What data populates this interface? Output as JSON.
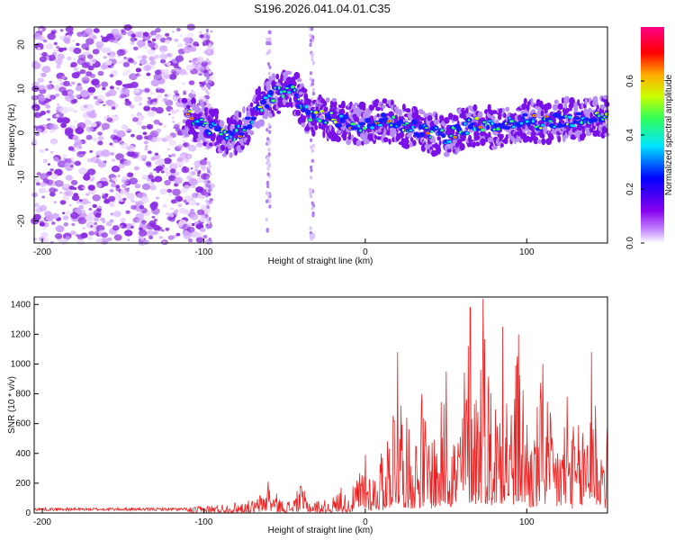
{
  "title": "S196.2026.041.04.01.C35",
  "chart_data": [
    {
      "type": "heatmap",
      "name": "spectrogram",
      "xlabel": "Height of straight line (km)",
      "ylabel": "Frequency (Hz)",
      "xlim": [
        -205,
        150
      ],
      "ylim": [
        -25,
        24
      ],
      "xticks": [
        -200,
        -100,
        0,
        100
      ],
      "yticks": [
        -20,
        -10,
        0,
        10,
        20
      ],
      "colorbar": {
        "label": "Normalized spectral amplitude",
        "range": [
          0.0,
          0.8
        ],
        "ticks": [
          0.0,
          0.2,
          0.4,
          0.6
        ],
        "colormap": [
          "#ffffff",
          "#cc99ff",
          "#8800ee",
          "#0000ff",
          "#00e5ff",
          "#33ff55",
          "#ccff00",
          "#ffaa00",
          "#ff0000",
          "#ff0088"
        ]
      },
      "ridge": {
        "description_points": [
          [
            -110,
            4
          ],
          [
            -95,
            1
          ],
          [
            -85,
            -1
          ],
          [
            -75,
            1
          ],
          [
            -65,
            6
          ],
          [
            -55,
            9
          ],
          [
            -45,
            10
          ],
          [
            -35,
            4
          ],
          [
            -20,
            3
          ],
          [
            -5,
            2
          ],
          [
            0,
            2
          ],
          [
            10,
            3
          ],
          [
            20,
            2
          ],
          [
            30,
            1
          ],
          [
            40,
            0
          ],
          [
            50,
            -1
          ],
          [
            60,
            1
          ],
          [
            70,
            2
          ],
          [
            80,
            1
          ],
          [
            90,
            2
          ],
          [
            100,
            3
          ],
          [
            110,
            2
          ],
          [
            120,
            3
          ],
          [
            135,
            3
          ],
          [
            150,
            4
          ]
        ]
      }
    },
    {
      "type": "line",
      "name": "snr",
      "xlabel": "Height of straight line (km)",
      "ylabel": "SNR (10 * v/v)",
      "xlim": [
        -205,
        150
      ],
      "ylim": [
        0,
        1450
      ],
      "xticks": [
        -200,
        -100,
        0,
        100
      ],
      "yticks": [
        0,
        200,
        400,
        600,
        800,
        1000,
        1200,
        1400
      ],
      "color": "#ee2222",
      "peaks": [
        [
          -60,
          210
        ],
        [
          -40,
          180
        ],
        [
          -15,
          170
        ],
        [
          0,
          390
        ],
        [
          10,
          400
        ],
        [
          20,
          1080
        ],
        [
          35,
          800
        ],
        [
          50,
          950
        ],
        [
          65,
          1380
        ],
        [
          73,
          1440
        ],
        [
          85,
          1250
        ],
        [
          95,
          1200
        ],
        [
          110,
          1000
        ],
        [
          125,
          780
        ],
        [
          140,
          1080
        ],
        [
          145,
          220
        ]
      ]
    }
  ]
}
